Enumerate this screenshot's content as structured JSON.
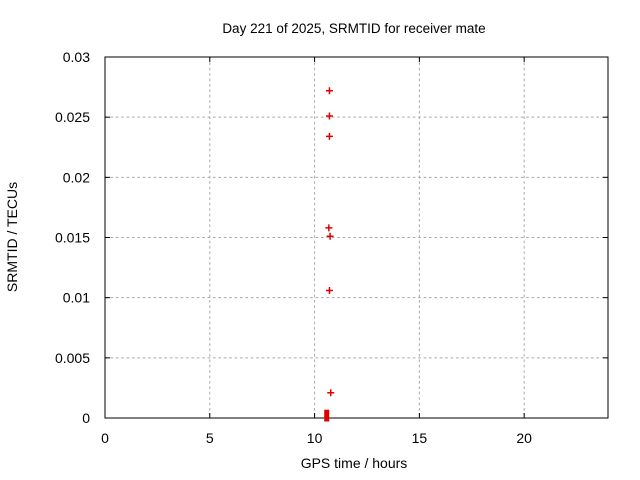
{
  "chart_data": {
    "type": "scatter",
    "title": "Day 221 of 2025, SRMTID for receiver mate",
    "xlabel": "GPS time / hours",
    "ylabel": "SRMTID / TECUs",
    "xlim": [
      0,
      24
    ],
    "ylim": [
      0,
      0.03
    ],
    "xticks": [
      0,
      5,
      10,
      15,
      20
    ],
    "xtick_labels": [
      "0",
      "5",
      "10",
      "15",
      "20"
    ],
    "yticks": [
      0,
      0.005,
      0.01,
      0.015,
      0.02,
      0.025,
      0.03
    ],
    "ytick_labels": [
      "0",
      "0.005",
      "0.01",
      "0.015",
      "0.02",
      "0.025",
      "0.03"
    ],
    "grid": true,
    "grid_style": "dashed",
    "legend": "none",
    "marker": "plus",
    "marker_color": "#e00000",
    "grid_color": "#a8a8a8",
    "axis_color": "#000000",
    "background_color": "#ffffff",
    "series": [
      {
        "name": "SRMTID",
        "points": [
          {
            "x": 10.71,
            "y": 0.0272
          },
          {
            "x": 10.71,
            "y": 0.0251
          },
          {
            "x": 10.71,
            "y": 0.0234
          },
          {
            "x": 10.68,
            "y": 0.0158
          },
          {
            "x": 10.74,
            "y": 0.0151
          },
          {
            "x": 10.71,
            "y": 0.0106
          },
          {
            "x": 10.77,
            "y": 0.0021
          }
        ]
      }
    ],
    "zero_cluster": {
      "x": 10.58,
      "y_min": 0.0,
      "y_max": 0.0004
    }
  }
}
